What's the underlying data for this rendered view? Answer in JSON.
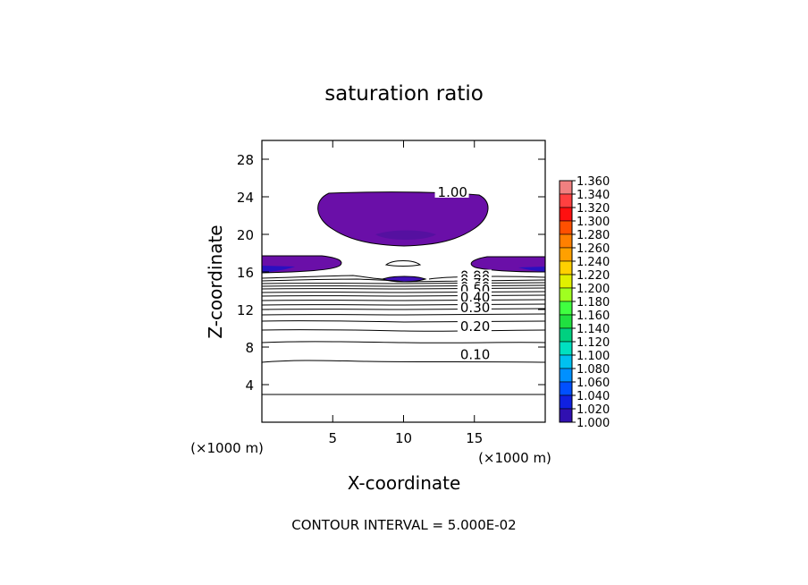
{
  "chart_data": {
    "type": "contour",
    "title": "saturation ratio",
    "xlabel": "X-coordinate",
    "ylabel": "Z-coordinate",
    "x_unit": "(×1000 m)",
    "y_unit": "(×1000 m)",
    "xlim": [
      0,
      20
    ],
    "ylim": [
      0,
      30
    ],
    "x_ticks": [
      5,
      10,
      15
    ],
    "y_ticks": [
      4,
      8,
      12,
      16,
      20,
      24,
      28
    ],
    "footer": "CONTOUR INTERVAL = 5.000E-02",
    "contour_interval": 0.05,
    "contour_labels": [
      {
        "text": "1.00",
        "x": 12.4,
        "z": 24.1
      },
      {
        "text": "0.90",
        "x": 14.0,
        "z": 15.2
      },
      {
        "text": "0.80",
        "x": 14.0,
        "z": 14.8
      },
      {
        "text": "0.70",
        "x": 14.0,
        "z": 14.4
      },
      {
        "text": "0.60",
        "x": 14.0,
        "z": 14.0
      },
      {
        "text": "0.50",
        "x": 14.0,
        "z": 13.7
      },
      {
        "text": "0.40",
        "x": 14.0,
        "z": 12.9
      },
      {
        "text": "0.30",
        "x": 14.0,
        "z": 11.8
      },
      {
        "text": "0.20",
        "x": 14.0,
        "z": 9.8
      },
      {
        "text": "0.10",
        "x": 14.0,
        "z": 6.8
      }
    ],
    "colorbar": {
      "levels": [
        "1.360",
        "1.340",
        "1.320",
        "1.300",
        "1.280",
        "1.260",
        "1.240",
        "1.220",
        "1.200",
        "1.180",
        "1.160",
        "1.140",
        "1.120",
        "1.100",
        "1.080",
        "1.060",
        "1.040",
        "1.020",
        "1.000"
      ],
      "colors": [
        "#f08080",
        "#ff4040",
        "#ff1010",
        "#ff5000",
        "#ff8000",
        "#ffa000",
        "#ffd000",
        "#e0f000",
        "#a0ff20",
        "#40ff40",
        "#20e040",
        "#00d080",
        "#00e0c0",
        "#00c0f0",
        "#0090ff",
        "#0050ff",
        "#1020e0",
        "#3010b0",
        "#6010a0"
      ]
    }
  }
}
